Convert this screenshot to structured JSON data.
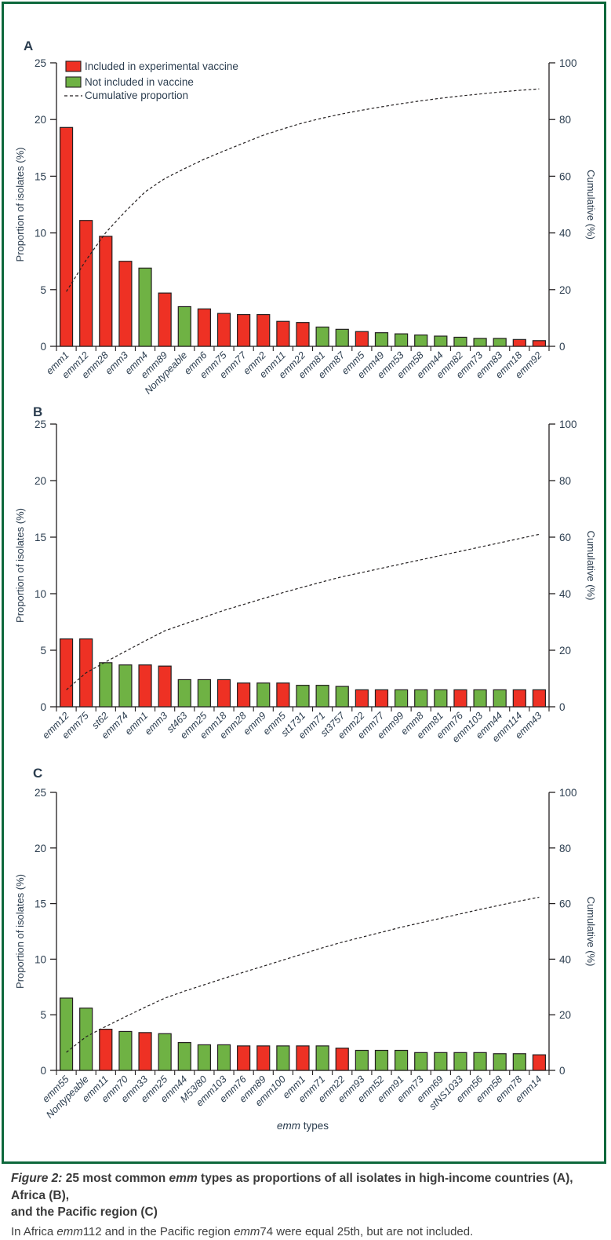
{
  "figure": {
    "panel_letters": [
      "A",
      "B",
      "C"
    ],
    "frame_color": "#0d683c",
    "legend": {
      "items": [
        {
          "label": "Included in experimental vaccine",
          "swatch": "red-square",
          "color": "#ee3124"
        },
        {
          "label": "Not included in vaccine",
          "swatch": "green-square",
          "color": "#6fb244"
        },
        {
          "label": "Cumulative proportion",
          "swatch": "dashed-line",
          "color": "#231f20"
        }
      ]
    },
    "x_axis_title_segments": [
      {
        "text": "emm",
        "italic": true
      },
      {
        "text": " types",
        "italic": false
      }
    ],
    "caption": {
      "heading_lines": [
        [
          {
            "text": "Figure 2:",
            "italic": true
          },
          {
            "text": " 25 most common ",
            "italic": false
          },
          {
            "text": "emm",
            "italic": true
          },
          {
            "text": " types as proportions of all isolates in high-income countries (A), Africa (B),",
            "italic": false
          }
        ],
        [
          {
            "text": "and the Pacific region (C)",
            "italic": false
          }
        ]
      ],
      "note_segments": [
        {
          "text": "In Africa ",
          "italic": false
        },
        {
          "text": "emm",
          "italic": true
        },
        {
          "text": "112 and in the Pacific region ",
          "italic": false
        },
        {
          "text": "emm",
          "italic": true
        },
        {
          "text": "74 were equal 25th, but are not included.",
          "italic": false
        }
      ]
    }
  },
  "chart_data": [
    {
      "type": "bar",
      "panel": "A",
      "region": "high-income countries",
      "categories": [
        "emm1",
        "emm12",
        "emm28",
        "emm3",
        "emm4",
        "emm89",
        "Nontypeable",
        "emm6",
        "emm75",
        "emm77",
        "emm2",
        "emm11",
        "emm22",
        "emm81",
        "emm87",
        "emm5",
        "emm49",
        "emm53",
        "emm58",
        "emm44",
        "emm82",
        "emm73",
        "emm83",
        "emm18",
        "emm92"
      ],
      "values": [
        19.3,
        11.1,
        9.7,
        7.5,
        6.9,
        4.7,
        3.5,
        3.3,
        2.9,
        2.8,
        2.8,
        2.2,
        2.1,
        1.7,
        1.5,
        1.3,
        1.2,
        1.1,
        1.0,
        0.9,
        0.8,
        0.7,
        0.7,
        0.6,
        0.5
      ],
      "included_in_vaccine": [
        true,
        true,
        true,
        true,
        false,
        true,
        false,
        true,
        true,
        true,
        true,
        true,
        true,
        false,
        false,
        true,
        false,
        false,
        false,
        false,
        false,
        false,
        false,
        true,
        true
      ],
      "cumulative": [
        19.3,
        30.4,
        40.1,
        47.6,
        54.5,
        59.2,
        62.7,
        66.0,
        68.9,
        71.7,
        74.5,
        76.7,
        78.8,
        80.5,
        82.0,
        83.3,
        84.5,
        85.6,
        86.6,
        87.5,
        88.3,
        89.0,
        89.7,
        90.3,
        90.8
      ],
      "xlabel": "emm types",
      "ylabel_left": "Proportion of isolates (%)",
      "ylabel_right": "Cumulative (%)",
      "ylim_left": [
        0,
        25
      ],
      "ylim_right": [
        0,
        100
      ],
      "yticks_left": [
        0,
        5,
        10,
        15,
        20,
        25
      ],
      "yticks_right": [
        0,
        20,
        40,
        60,
        80,
        100
      ],
      "bar_color_included": "#ee3124",
      "bar_color_not_included": "#6fb244",
      "line_style": "dashed"
    },
    {
      "type": "bar",
      "panel": "B",
      "region": "Africa",
      "categories": [
        "emm12",
        "emm75",
        "st62",
        "emm74",
        "emm1",
        "emm3",
        "st463",
        "emm25",
        "emm18",
        "emm28",
        "emm9",
        "emm5",
        "st1731",
        "emm71",
        "st3757",
        "emm22",
        "emm77",
        "emm99",
        "emm8",
        "emm81",
        "emm76",
        "emm103",
        "emm44",
        "emm114",
        "emm43"
      ],
      "values": [
        6.0,
        6.0,
        3.9,
        3.7,
        3.7,
        3.6,
        2.4,
        2.4,
        2.4,
        2.1,
        2.1,
        2.1,
        1.9,
        1.9,
        1.8,
        1.5,
        1.5,
        1.5,
        1.5,
        1.5,
        1.5,
        1.5,
        1.5,
        1.5,
        1.5
      ],
      "included_in_vaccine": [
        true,
        true,
        false,
        false,
        true,
        true,
        false,
        false,
        true,
        true,
        false,
        true,
        false,
        false,
        false,
        true,
        true,
        false,
        false,
        false,
        true,
        false,
        false,
        true,
        true
      ],
      "cumulative": [
        6.0,
        12.0,
        15.9,
        19.6,
        23.3,
        26.9,
        29.3,
        31.7,
        34.1,
        36.2,
        38.3,
        40.4,
        42.3,
        44.2,
        46.0,
        47.5,
        49.0,
        50.5,
        52.0,
        53.5,
        55.0,
        56.5,
        58.0,
        59.5,
        61.0
      ],
      "xlabel": "emm types",
      "ylabel_left": "Proportion of isolates (%)",
      "ylabel_right": "Cumulative (%)",
      "ylim_left": [
        0,
        25
      ],
      "ylim_right": [
        0,
        100
      ],
      "yticks_left": [
        0,
        5,
        10,
        15,
        20,
        25
      ],
      "yticks_right": [
        0,
        20,
        40,
        60,
        80,
        100
      ],
      "bar_color_included": "#ee3124",
      "bar_color_not_included": "#6fb244",
      "line_style": "dashed"
    },
    {
      "type": "bar",
      "panel": "C",
      "region": "the Pacific region",
      "categories": [
        "emm55",
        "Nontypeable",
        "emm11",
        "emm70",
        "emm33",
        "emm25",
        "emm44",
        "M53/80",
        "emm103",
        "emm76",
        "emm89",
        "emm100",
        "emm1",
        "emm71",
        "emm22",
        "emm93",
        "emm52",
        "emm91",
        "emm73",
        "emm69",
        "stNS1033",
        "emm56",
        "emm58",
        "emm78",
        "emm14"
      ],
      "values": [
        6.5,
        5.6,
        3.7,
        3.5,
        3.4,
        3.3,
        2.5,
        2.3,
        2.3,
        2.2,
        2.2,
        2.2,
        2.2,
        2.2,
        2.0,
        1.8,
        1.8,
        1.8,
        1.6,
        1.6,
        1.6,
        1.6,
        1.5,
        1.5,
        1.4
      ],
      "included_in_vaccine": [
        false,
        false,
        true,
        false,
        true,
        false,
        false,
        false,
        false,
        true,
        true,
        false,
        true,
        false,
        true,
        false,
        false,
        false,
        false,
        false,
        false,
        false,
        false,
        false,
        true
      ],
      "cumulative": [
        6.5,
        12.1,
        15.8,
        19.3,
        22.7,
        26.0,
        28.5,
        30.8,
        33.1,
        35.3,
        37.5,
        39.7,
        41.9,
        44.1,
        46.1,
        47.9,
        49.7,
        51.5,
        53.1,
        54.7,
        56.3,
        57.9,
        59.4,
        60.9,
        62.3
      ],
      "xlabel": "emm types",
      "ylabel_left": "Proportion of isolates (%)",
      "ylabel_right": "Cumulative (%)",
      "ylim_left": [
        0,
        25
      ],
      "ylim_right": [
        0,
        100
      ],
      "yticks_left": [
        0,
        5,
        10,
        15,
        20,
        25
      ],
      "yticks_right": [
        0,
        20,
        40,
        60,
        80,
        100
      ],
      "bar_color_included": "#ee3124",
      "bar_color_not_included": "#6fb244",
      "line_style": "dashed"
    }
  ]
}
